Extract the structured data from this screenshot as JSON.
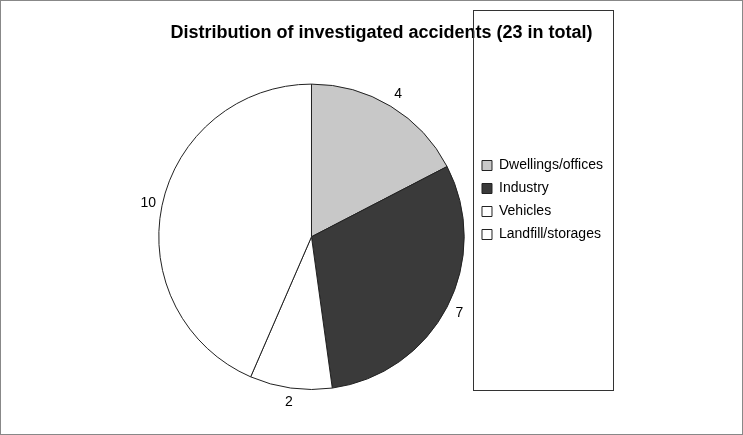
{
  "chart_data": {
    "type": "pie",
    "title": "Distribution of investigated accidents (23 in total)",
    "categories": [
      "Dwellings/offices",
      "Industry",
      "Vehicles",
      "Landfill/storages"
    ],
    "values": [
      4,
      7,
      2,
      10
    ],
    "colors": [
      "#c8c8c8",
      "#3a3a3a",
      "#ffffff",
      "#ffffff"
    ],
    "legend": "right",
    "data_labels": true
  }
}
